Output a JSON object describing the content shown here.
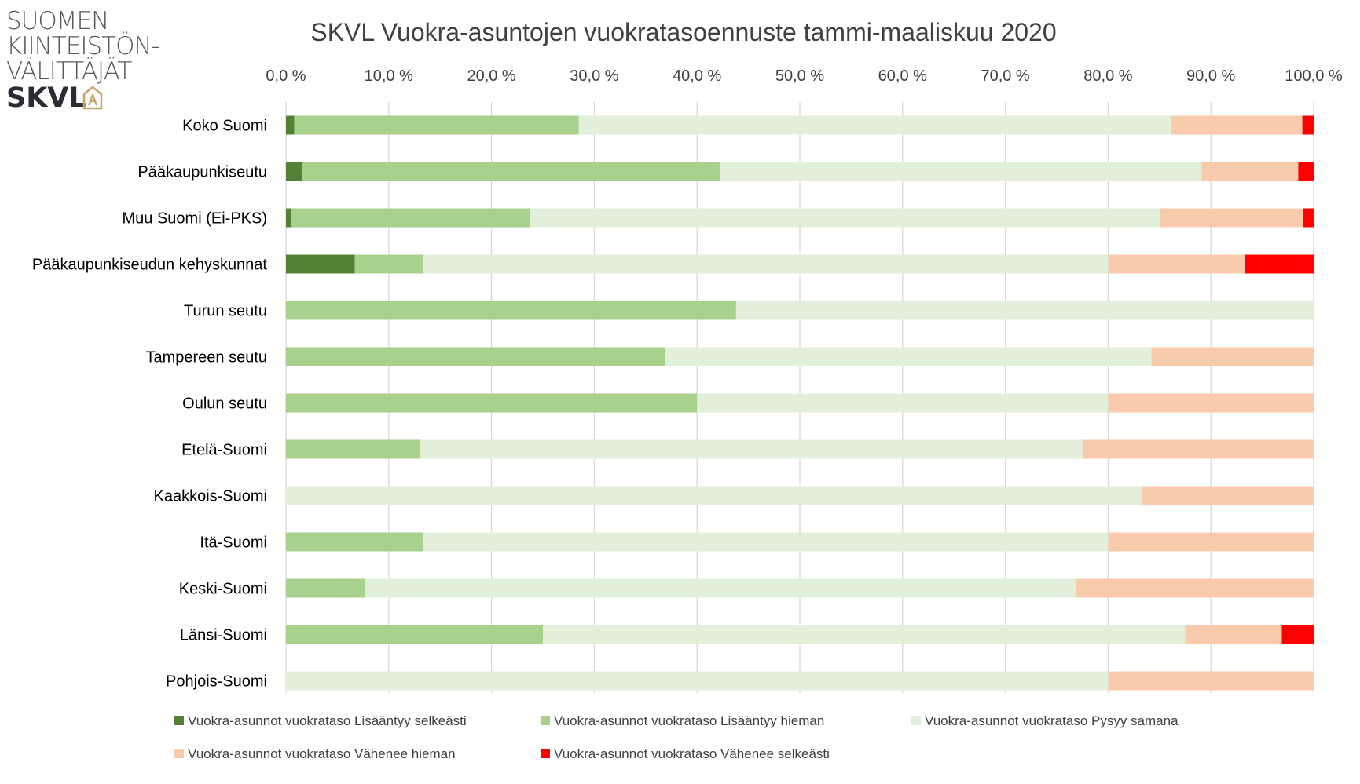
{
  "logo": {
    "line1": "SUOMEN",
    "line2": "KIINTEISTÖN-",
    "line3": "VÄLITTÄJÄT",
    "mark": "SKVL"
  },
  "chart_data": {
    "type": "bar",
    "orientation": "horizontal",
    "stacked": "percent",
    "title": "SKVL Vuokra-asuntojen vuokratasoennuste tammi-maaliskuu 2020",
    "xlabel": "",
    "ylabel": "",
    "xlim": [
      0,
      100
    ],
    "xticks": [
      "0,0 %",
      "10,0 %",
      "20,0 %",
      "30,0 %",
      "40,0 %",
      "50,0 %",
      "60,0 %",
      "70,0 %",
      "80,0 %",
      "90,0 %",
      "100,0 %"
    ],
    "x_axis_position": "top",
    "grid": true,
    "legend_position": "bottom",
    "categories": [
      "Koko Suomi",
      "Pääkaupunkiseutu",
      "Muu Suomi (Ei-PKS)",
      "Pääkaupunkiseudun kehyskunnat",
      "Turun seutu",
      "Tampereen seutu",
      "Oulun seutu",
      "Etelä-Suomi",
      "Kaakkois-Suomi",
      "Itä-Suomi",
      "Keski-Suomi",
      "Länsi-Suomi",
      "Pohjois-Suomi"
    ],
    "series": [
      {
        "name": "Vuokra-asunnot vuokrataso Lisääntyy selkeästi",
        "color": "#548235",
        "values": [
          0.8,
          1.6,
          0.5,
          6.7,
          0,
          0,
          0,
          0,
          0,
          0,
          0,
          0,
          0
        ]
      },
      {
        "name": "Vuokra-asunnot vuokrataso Lisääntyy hieman",
        "color": "#a9d18e",
        "values": [
          27.7,
          40.6,
          23.2,
          6.6,
          43.8,
          36.9,
          40.0,
          13.0,
          0,
          13.3,
          7.7,
          25.0,
          0
        ]
      },
      {
        "name": "Vuokra-asunnot vuokrataso Pysyy samana",
        "color": "#e2efda",
        "values": [
          57.6,
          46.9,
          61.4,
          66.7,
          56.2,
          47.3,
          40.0,
          64.5,
          83.3,
          66.7,
          69.2,
          62.5,
          80.0
        ]
      },
      {
        "name": "Vuokra-asunnot vuokrataso Vähenee hieman",
        "color": "#f8cbad",
        "values": [
          12.8,
          9.4,
          13.9,
          13.3,
          0,
          15.8,
          20.0,
          22.5,
          16.7,
          20.0,
          23.1,
          9.4,
          20.0
        ]
      },
      {
        "name": "Vuokra-asunnot vuokrataso Vähenee selkeästi",
        "color": "#ff0000",
        "values": [
          1.1,
          1.5,
          1.0,
          6.7,
          0,
          0,
          0,
          0,
          0,
          0,
          0,
          3.1,
          0
        ]
      }
    ]
  }
}
